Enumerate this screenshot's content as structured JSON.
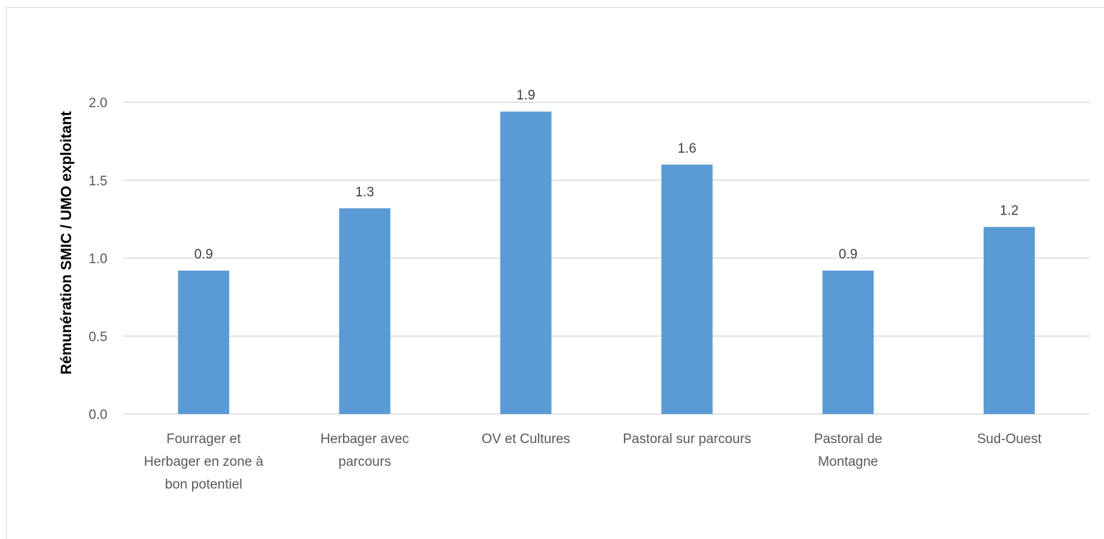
{
  "chart_data": {
    "type": "bar",
    "title": "",
    "xlabel": "",
    "ylabel": "Rémunération SMIC / UMO exploitant",
    "categories": [
      [
        "Fourrager et",
        "Herbager en zone à",
        "bon potentiel"
      ],
      [
        "Herbager avec",
        "parcours"
      ],
      [
        "OV et Cultures"
      ],
      [
        "Pastoral sur parcours"
      ],
      [
        "Pastoral de",
        "Montagne"
      ],
      [
        "Sud-Ouest"
      ]
    ],
    "values": [
      0.92,
      1.32,
      1.94,
      1.6,
      0.92,
      1.2
    ],
    "data_labels": [
      "0.9",
      "1.3",
      "1.9",
      "1.6",
      "0.9",
      "1.2"
    ],
    "ylim": [
      0,
      2.0
    ],
    "yticks": [
      0.0,
      0.5,
      1.0,
      1.5,
      2.0
    ],
    "ytick_labels": [
      "0.0",
      "0.5",
      "1.0",
      "1.5",
      "2.0"
    ],
    "grid": true,
    "legend": "none",
    "colors": {
      "bar": "#5b9bd5",
      "grid": "#d9d9d9",
      "axis": "#d9d9d9"
    }
  }
}
